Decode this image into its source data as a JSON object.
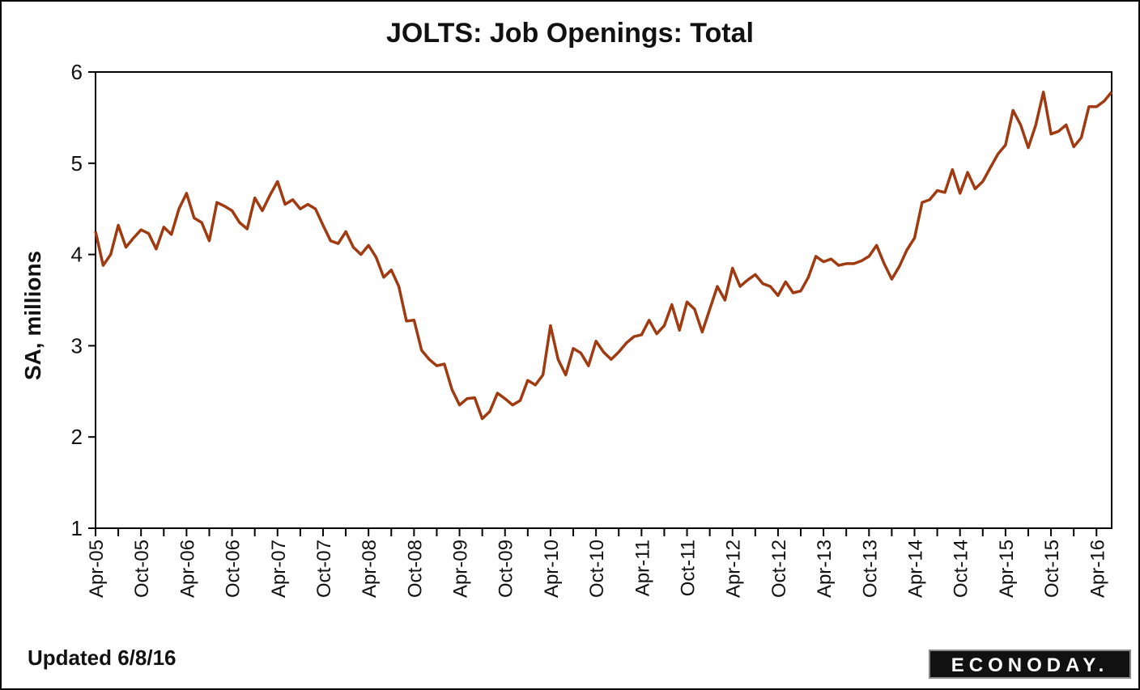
{
  "chart_data": {
    "type": "line",
    "title": "JOLTS: Job Openings: Total",
    "ylabel": "SA, millions",
    "xlabel": "",
    "ylim": [
      1,
      6
    ],
    "yticks": [
      "1",
      "2",
      "3",
      "4",
      "5",
      "6"
    ],
    "xtick_labels": [
      "Apr-05",
      "Oct-05",
      "Apr-06",
      "Oct-06",
      "Apr-07",
      "Oct-07",
      "Apr-08",
      "Oct-08",
      "Apr-09",
      "Oct-09",
      "Apr-10",
      "Oct-10",
      "Apr-11",
      "Oct-11",
      "Apr-12",
      "Oct-12",
      "Apr-13",
      "Oct-13",
      "Apr-14",
      "Oct-14",
      "Apr-15",
      "Oct-15",
      "Apr-16"
    ],
    "x_start": "Apr-05",
    "x_end": "Apr-16",
    "grid": false,
    "line_color": "#a03a10",
    "series": [
      {
        "values": [
          4.25,
          3.88,
          4.0,
          4.32,
          4.08,
          4.18,
          4.27,
          4.23,
          4.06,
          4.3,
          4.22,
          4.5,
          4.67,
          4.4,
          4.35,
          4.15,
          4.57,
          4.53,
          4.48,
          4.35,
          4.28,
          4.62,
          4.48,
          4.65,
          4.8,
          4.55,
          4.6,
          4.5,
          4.55,
          4.5,
          4.32,
          4.15,
          4.12,
          4.25,
          4.08,
          4.0,
          4.1,
          3.97,
          3.75,
          3.83,
          3.65,
          3.27,
          3.28,
          2.95,
          2.85,
          2.78,
          2.8,
          2.52,
          2.35,
          2.42,
          2.43,
          2.2,
          2.28,
          2.48,
          2.42,
          2.35,
          2.4,
          2.62,
          2.57,
          2.68,
          3.22,
          2.85,
          2.68,
          2.97,
          2.92,
          2.78,
          3.05,
          2.93,
          2.85,
          2.93,
          3.03,
          3.1,
          3.12,
          3.28,
          3.13,
          3.22,
          3.45,
          3.17,
          3.48,
          3.4,
          3.15,
          3.4,
          3.65,
          3.5,
          3.85,
          3.65,
          3.72,
          3.78,
          3.68,
          3.65,
          3.55,
          3.7,
          3.58,
          3.6,
          3.75,
          3.98,
          3.92,
          3.95,
          3.88,
          3.9,
          3.9,
          3.93,
          3.98,
          4.1,
          3.9,
          3.73,
          3.87,
          4.05,
          4.18,
          4.57,
          4.6,
          4.7,
          4.68,
          4.93,
          4.67,
          4.9,
          4.72,
          4.8,
          4.95,
          5.1,
          5.2,
          5.58,
          5.42,
          5.17,
          5.42,
          5.78,
          5.32,
          5.35,
          5.42,
          5.18,
          5.28,
          5.62,
          5.62,
          5.68,
          5.78
        ]
      }
    ]
  },
  "footer": {
    "updated": "Updated 6/8/16",
    "logo_text": "ECONODAY."
  }
}
